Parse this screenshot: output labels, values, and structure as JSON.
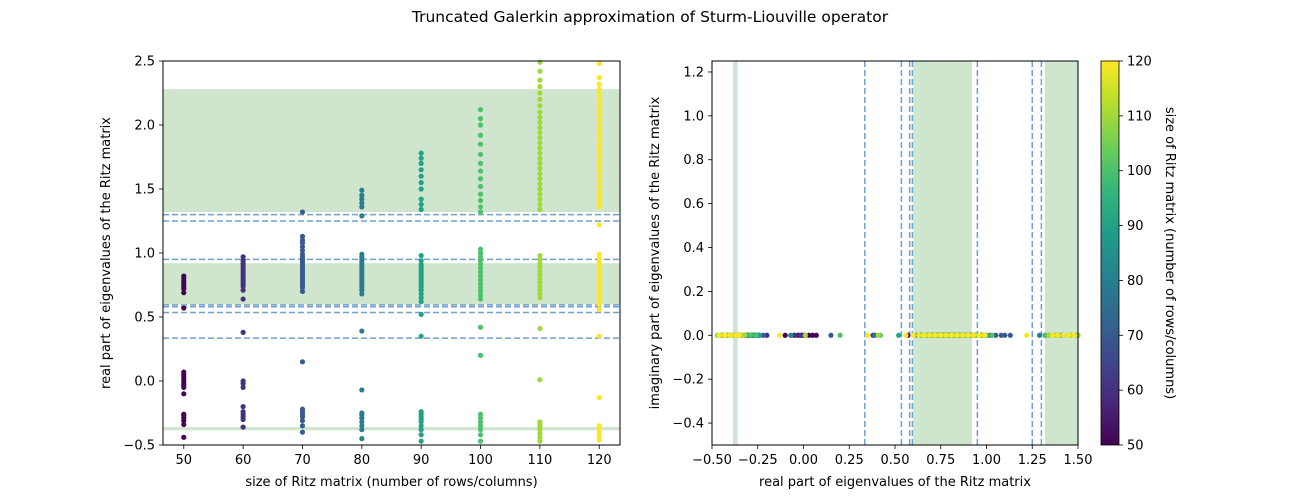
{
  "figure": {
    "title": "Truncated Galerkin approximation of Sturm-Liouville operator"
  },
  "colors": {
    "band_fill": "#cfe5cd",
    "dashed_line": "#6fa1cd",
    "viridis": [
      "#440154",
      "#482878",
      "#3e4989",
      "#31688e",
      "#26828e",
      "#1f9e89",
      "#35b779",
      "#6ece58",
      "#b5de2b",
      "#fde725"
    ]
  },
  "chart_data": [
    {
      "type": "scatter",
      "title": "",
      "xlabel": "size of Ritz matrix (number of rows/columns)",
      "ylabel": "real part of eigenvalues of the Ritz matrix",
      "xlim": [
        46.5,
        123.5
      ],
      "ylim": [
        -0.5,
        2.5
      ],
      "xticks": [
        50,
        60,
        70,
        80,
        90,
        100,
        110,
        120
      ],
      "xtick_labels": [
        "50",
        "60",
        "70",
        "80",
        "90",
        "100",
        "110",
        "120"
      ],
      "yticks": [
        -0.5,
        0.0,
        0.5,
        1.0,
        1.5,
        2.0,
        2.5
      ],
      "ytick_labels": [
        "−0.5",
        "0.0",
        "0.5",
        "1.0",
        "1.5",
        "2.0",
        "2.5"
      ],
      "grid": false,
      "shaded_bands_y": [
        [
          -0.385,
          -0.36
        ],
        [
          0.6,
          0.92
        ],
        [
          1.32,
          2.28
        ]
      ],
      "dashed_lines_y": [
        0.335,
        0.535,
        0.58,
        0.595,
        0.95,
        1.25,
        1.3
      ],
      "series": [
        {
          "x": 50,
          "values": [
            -0.44,
            -0.34,
            -0.31,
            -0.29,
            -0.27,
            -0.26,
            -0.1,
            -0.05,
            -0.03,
            -0.01,
            0.01,
            0.03,
            0.05,
            0.07,
            0.57,
            0.69,
            0.72,
            0.74,
            0.76,
            0.78,
            0.8,
            0.82
          ]
        },
        {
          "x": 60,
          "values": [
            -0.36,
            -0.3,
            -0.28,
            -0.26,
            -0.24,
            -0.2,
            -0.05,
            -0.02,
            0.0,
            0.38,
            0.64,
            0.71,
            0.74,
            0.76,
            0.78,
            0.8,
            0.82,
            0.84,
            0.86,
            0.88,
            0.9,
            0.92,
            0.94,
            0.97
          ]
        },
        {
          "x": 70,
          "values": [
            -0.4,
            -0.35,
            -0.31,
            -0.28,
            -0.26,
            -0.24,
            -0.22,
            0.15,
            0.7,
            0.73,
            0.75,
            0.77,
            0.79,
            0.81,
            0.83,
            0.85,
            0.87,
            0.89,
            0.91,
            0.93,
            0.95,
            0.97,
            0.99,
            1.02,
            1.05,
            1.08,
            1.1,
            1.13,
            1.32
          ]
        },
        {
          "x": 80,
          "values": [
            -0.45,
            -0.38,
            -0.35,
            -0.32,
            -0.29,
            -0.27,
            -0.25,
            -0.07,
            0.39,
            0.68,
            0.71,
            0.73,
            0.75,
            0.77,
            0.79,
            0.81,
            0.83,
            0.85,
            0.87,
            0.89,
            0.91,
            0.93,
            0.95,
            0.97,
            0.99,
            1.29,
            1.36,
            1.39,
            1.42,
            1.45,
            1.49
          ]
        },
        {
          "x": 90,
          "values": [
            -0.47,
            -0.42,
            -0.38,
            -0.35,
            -0.32,
            -0.3,
            -0.28,
            -0.26,
            -0.24,
            0.35,
            0.52,
            0.62,
            0.65,
            0.68,
            0.71,
            0.73,
            0.75,
            0.77,
            0.79,
            0.81,
            0.83,
            0.85,
            0.87,
            0.89,
            0.91,
            0.94,
            0.98,
            1.34,
            1.38,
            1.42,
            1.5,
            1.55,
            1.6,
            1.65,
            1.7,
            1.74,
            1.78
          ]
        },
        {
          "x": 100,
          "values": [
            -0.47,
            -0.42,
            -0.38,
            -0.35,
            -0.32,
            -0.29,
            -0.26,
            0.2,
            0.42,
            0.64,
            0.67,
            0.7,
            0.73,
            0.76,
            0.79,
            0.82,
            0.85,
            0.88,
            0.91,
            0.94,
            0.97,
            1.0,
            1.03,
            1.32,
            1.36,
            1.41,
            1.46,
            1.52,
            1.58,
            1.64,
            1.7,
            1.77,
            1.85,
            1.92,
            2.0,
            2.05,
            2.12
          ]
        },
        {
          "x": 110,
          "values": [
            -0.47,
            -0.44,
            -0.41,
            -0.38,
            -0.36,
            -0.34,
            -0.32,
            0.01,
            0.41,
            0.65,
            0.68,
            0.71,
            0.74,
            0.77,
            0.8,
            0.83,
            0.86,
            0.89,
            0.92,
            0.95,
            0.98,
            1.34,
            1.38,
            1.42,
            1.46,
            1.5,
            1.54,
            1.58,
            1.62,
            1.66,
            1.7,
            1.74,
            1.78,
            1.82,
            1.86,
            1.9,
            1.94,
            1.98,
            2.02,
            2.06,
            2.1,
            2.15,
            2.2,
            2.25,
            2.3,
            2.35,
            2.42,
            2.49
          ]
        },
        {
          "x": 120,
          "values": [
            -0.46,
            -0.43,
            -0.4,
            -0.37,
            -0.35,
            -0.13,
            0.35,
            0.56,
            0.6,
            0.63,
            0.66,
            0.69,
            0.72,
            0.75,
            0.78,
            0.81,
            0.84,
            0.87,
            0.9,
            0.93,
            0.96,
            0.99,
            1.22,
            1.36,
            1.39,
            1.42,
            1.45,
            1.48,
            1.52,
            1.56,
            1.6,
            1.64,
            1.68,
            1.72,
            1.76,
            1.8,
            1.84,
            1.88,
            1.92,
            1.96,
            2.0,
            2.04,
            2.08,
            2.12,
            2.16,
            2.2,
            2.24,
            2.28,
            2.32,
            2.37,
            2.48
          ]
        }
      ]
    },
    {
      "type": "scatter",
      "title": "",
      "xlabel": "real part of eigenvalues of the Ritz matrix",
      "ylabel": "imaginary part of eigenvalues of the Ritz matrix",
      "xlim": [
        -0.5,
        1.5
      ],
      "ylim": [
        -0.5,
        1.25
      ],
      "xticks": [
        -0.5,
        -0.25,
        0.0,
        0.25,
        0.5,
        0.75,
        1.0,
        1.25,
        1.5
      ],
      "xtick_labels": [
        "−0.50",
        "−0.25",
        "0.00",
        "0.25",
        "0.50",
        "0.75",
        "1.00",
        "1.25",
        "1.50"
      ],
      "yticks": [
        -0.4,
        -0.2,
        0.0,
        0.2,
        0.4,
        0.6,
        0.8,
        1.0,
        1.2
      ],
      "ytick_labels": [
        "−0.4",
        "−0.2",
        "0.0",
        "0.2",
        "0.4",
        "0.6",
        "0.8",
        "1.0",
        "1.2"
      ],
      "grid": false,
      "shaded_bands_x": [
        [
          -0.385,
          -0.36
        ],
        [
          0.6,
          0.92
        ],
        [
          1.32,
          1.5
        ]
      ],
      "dashed_lines_x": [
        0.335,
        0.535,
        0.58,
        0.595,
        0.95,
        1.25,
        1.3
      ],
      "imag_value": 0.0,
      "points_from_left_panel": true,
      "colorbar": {
        "label": "size of Ritz matrix (number of rows/columns)",
        "range": [
          50,
          120
        ],
        "ticks": [
          50,
          60,
          70,
          80,
          90,
          100,
          110,
          120
        ],
        "tick_labels": [
          "50",
          "60",
          "70",
          "80",
          "90",
          "100",
          "110",
          "120"
        ],
        "colormap": "viridis"
      }
    }
  ]
}
